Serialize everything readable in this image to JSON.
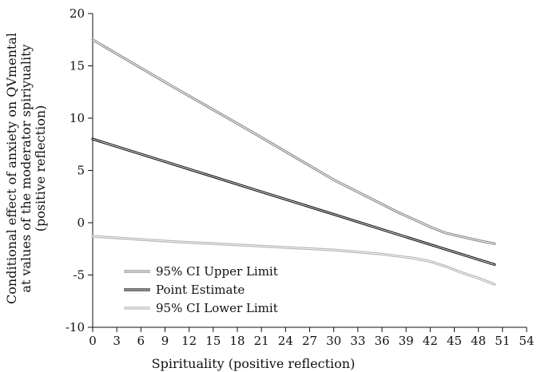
{
  "chart_data": {
    "type": "line",
    "title": "",
    "xlabel": "Spirituality (positive reflection)",
    "ylabel_lines": [
      "Conditional effect of anxiety on QVmental",
      "at values of the moderator spiriyuality",
      "(positive reflection)"
    ],
    "xlim": [
      0,
      54
    ],
    "ylim": [
      -10,
      20
    ],
    "xticks": [
      "0",
      "3",
      "6",
      "9",
      "12",
      "15",
      "18",
      "21",
      "24",
      "27",
      "30",
      "33",
      "36",
      "39",
      "42",
      "45",
      "48",
      "51",
      "54"
    ],
    "yticks": [
      "20",
      "15",
      "10",
      "5",
      "0",
      "-5",
      "-10"
    ],
    "grid": false,
    "legend": {
      "position": "bottom-left"
    },
    "series": [
      {
        "name": "95% CI Upper Limit",
        "color": "#8c8c8c",
        "x": [
          0,
          10,
          20,
          30,
          38,
          42,
          44,
          46,
          48,
          50
        ],
        "y": [
          17.5,
          13.0,
          8.6,
          4.1,
          1.0,
          -0.4,
          -1.0,
          -1.35,
          -1.7,
          -2.0
        ]
      },
      {
        "name": "Point Estimate",
        "color": "#111111",
        "x": [
          0,
          10,
          20,
          30,
          40,
          50
        ],
        "y": [
          8.0,
          5.6,
          3.2,
          0.8,
          -1.6,
          -4.0
        ]
      },
      {
        "name": "95% CI Lower Limit",
        "color": "#b4b4b4",
        "x": [
          0,
          10,
          20,
          30,
          36,
          40,
          42,
          44,
          46,
          48,
          50
        ],
        "y": [
          -1.3,
          -1.8,
          -2.2,
          -2.6,
          -3.0,
          -3.4,
          -3.7,
          -4.2,
          -4.8,
          -5.3,
          -5.9
        ]
      }
    ]
  }
}
